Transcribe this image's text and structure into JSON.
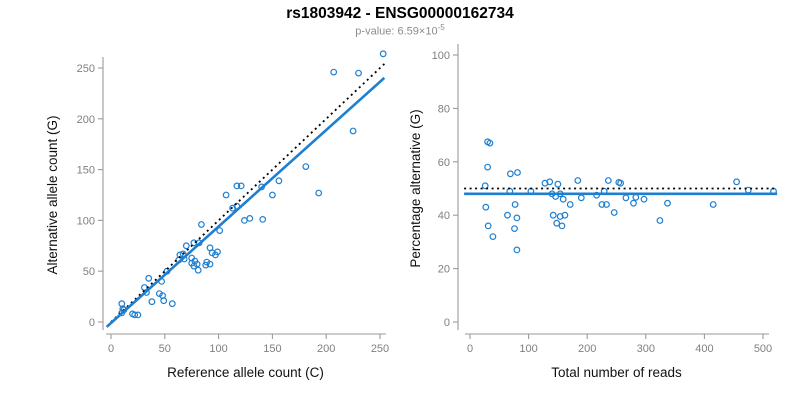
{
  "header": {
    "title": "rs1803942 - ENSG00000162734",
    "pvalue_label": "p-value: ",
    "pvalue_value": "6.59×10",
    "pvalue_exponent": "-5"
  },
  "colors": {
    "points": "#1e7fd1",
    "fit_line": "#1e7fd1",
    "expected_line": "#000000",
    "axis": "#9a9a9a",
    "tick_label": "#808080",
    "axis_title": "#111111",
    "title": "#000000",
    "subtitle": "#8c8c8c",
    "background": "#ffffff"
  },
  "chart_data": [
    {
      "id": "left",
      "type": "scatter",
      "title": "",
      "xlabel": "Reference allele count (C)",
      "ylabel": "Alternative allele count (G)",
      "xlim": [
        0,
        250
      ],
      "ylim": [
        0,
        250
      ],
      "xticks": [
        0,
        50,
        100,
        150,
        200,
        250
      ],
      "yticks": [
        0,
        50,
        100,
        150,
        200,
        250
      ],
      "grid": false,
      "legend": "none",
      "marker": "open-circle",
      "points": [
        [
          10,
          18
        ],
        [
          11,
          13
        ],
        [
          12,
          12
        ],
        [
          10,
          9
        ],
        [
          20,
          8
        ],
        [
          22,
          7
        ],
        [
          25,
          7
        ],
        [
          31,
          34
        ],
        [
          33,
          29
        ],
        [
          35,
          43
        ],
        [
          38,
          20
        ],
        [
          45,
          28
        ],
        [
          48,
          26
        ],
        [
          49,
          21
        ],
        [
          57,
          18
        ],
        [
          47,
          40
        ],
        [
          52,
          50
        ],
        [
          63,
          61
        ],
        [
          64,
          66
        ],
        [
          67,
          67
        ],
        [
          68,
          62
        ],
        [
          70,
          75
        ],
        [
          75,
          63
        ],
        [
          75,
          58
        ],
        [
          78,
          60
        ],
        [
          80,
          57
        ],
        [
          77,
          55
        ],
        [
          77,
          78
        ],
        [
          82,
          78
        ],
        [
          81,
          51
        ],
        [
          84,
          96
        ],
        [
          88,
          56
        ],
        [
          89,
          59
        ],
        [
          92,
          57
        ],
        [
          92,
          73
        ],
        [
          94,
          68
        ],
        [
          97,
          66
        ],
        [
          99,
          69
        ],
        [
          101,
          90
        ],
        [
          107,
          125
        ],
        [
          113,
          112
        ],
        [
          117,
          114
        ],
        [
          117,
          134
        ],
        [
          121,
          134
        ],
        [
          124,
          100
        ],
        [
          129,
          102
        ],
        [
          141,
          101
        ],
        [
          140,
          133
        ],
        [
          150,
          125
        ],
        [
          156,
          139
        ],
        [
          181,
          153
        ],
        [
          193,
          127
        ],
        [
          225,
          188
        ],
        [
          207,
          246
        ],
        [
          230,
          245
        ],
        [
          253,
          264
        ]
      ],
      "lines": [
        {
          "name": "identity-line",
          "meaning": "expected y = x (no allelic imbalance)",
          "style": "dotted",
          "color": "#000000",
          "slope": 1,
          "intercept": 0,
          "x_range": [
            0,
            256
          ]
        },
        {
          "name": "fit-line",
          "meaning": "fitted trend",
          "style": "solid",
          "color": "#1e7fd1",
          "slope": 0.95,
          "intercept": -1,
          "x_range": [
            -4,
            254
          ]
        }
      ]
    },
    {
      "id": "right",
      "type": "scatter",
      "title": "",
      "xlabel": "Total number of reads",
      "ylabel": "Percentage alternative (G)",
      "xlim": [
        0,
        500
      ],
      "ylim": [
        0,
        100
      ],
      "xticks": [
        0,
        100,
        200,
        300,
        400,
        500
      ],
      "yticks": [
        0,
        20,
        40,
        60,
        80,
        100
      ],
      "grid": false,
      "legend": "none",
      "marker": "open-circle",
      "points": [
        [
          30,
          67.5
        ],
        [
          34,
          67
        ],
        [
          30,
          58
        ],
        [
          26,
          51
        ],
        [
          27,
          43
        ],
        [
          31,
          36
        ],
        [
          39,
          32
        ],
        [
          69,
          55.5
        ],
        [
          81,
          56
        ],
        [
          68,
          49
        ],
        [
          64,
          40
        ],
        [
          76,
          35
        ],
        [
          77,
          44
        ],
        [
          80,
          39
        ],
        [
          80,
          27
        ],
        [
          104,
          49
        ],
        [
          128,
          52
        ],
        [
          136,
          52.5
        ],
        [
          150,
          51.6
        ],
        [
          184,
          53
        ],
        [
          140,
          48
        ],
        [
          146,
          47
        ],
        [
          154,
          48
        ],
        [
          159,
          46
        ],
        [
          171,
          44
        ],
        [
          190,
          46.5
        ],
        [
          142,
          40
        ],
        [
          154,
          39.5
        ],
        [
          162,
          40
        ],
        [
          148,
          37
        ],
        [
          157,
          36
        ],
        [
          216,
          47.5
        ],
        [
          225,
          44
        ],
        [
          233,
          44
        ],
        [
          246,
          41
        ],
        [
          229,
          49
        ],
        [
          236,
          53
        ],
        [
          254,
          52.3
        ],
        [
          257,
          52
        ],
        [
          266,
          46.5
        ],
        [
          279,
          44.5
        ],
        [
          283,
          46.7
        ],
        [
          297,
          46
        ],
        [
          324,
          38
        ],
        [
          337,
          44.5
        ],
        [
          415,
          44
        ],
        [
          455,
          52.5
        ],
        [
          475,
          49.4
        ],
        [
          518,
          49
        ]
      ],
      "lines": [
        {
          "name": "expected-line",
          "meaning": "expected 50% alternative",
          "style": "dotted",
          "color": "#000000",
          "slope": 0,
          "intercept": 50,
          "x_range": [
            -10,
            524
          ]
        },
        {
          "name": "fit-line",
          "meaning": "fitted mean percentage",
          "style": "solid",
          "color": "#1e7fd1",
          "slope": 0,
          "intercept": 48,
          "x_range": [
            -10,
            524
          ]
        }
      ]
    }
  ]
}
